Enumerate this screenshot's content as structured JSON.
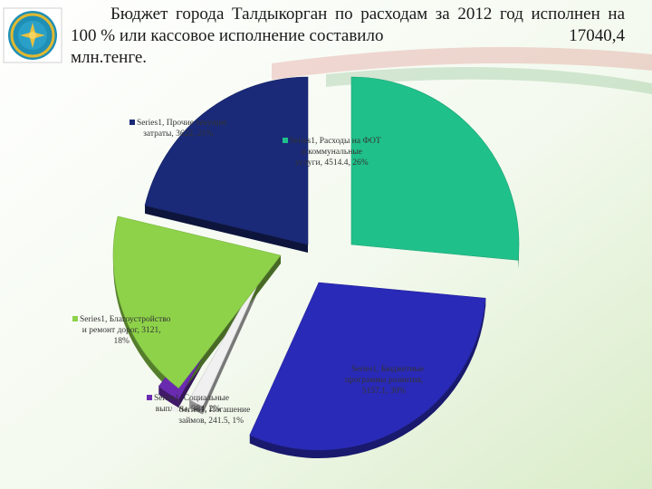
{
  "title": {
    "line1": "Бюджет города Талдыкорган по расходам за 2012 год исполнен на",
    "line2_left": "100 % или кассовое исполнение составило",
    "line2_right": "17040,4",
    "line3": "млн.тенге."
  },
  "colors": {
    "fot": "#20c08a",
    "dev": "#2a2ab8",
    "loans": "#f0f0f0",
    "social": "#6a2ab0",
    "roads": "#8ed24a",
    "other": "#1a2a78"
  },
  "chart_data": {
    "type": "pie",
    "title": "",
    "series_name": "Series1",
    "slices": [
      {
        "key": "fot",
        "name": "Расходы на ФОТ и коммунальные услуги",
        "value": 4514.4,
        "percent": 26
      },
      {
        "key": "dev",
        "name": "Бюджетные программы развития",
        "value": 5157.1,
        "percent": 30
      },
      {
        "key": "loans",
        "name": "Погашение займов",
        "value": 241.5,
        "percent": 1
      },
      {
        "key": "social",
        "name": "Социальные выплаты",
        "value": 384,
        "percent": 2
      },
      {
        "key": "roads",
        "name": "Благоустройство и ремонт дорог",
        "value": 3121,
        "percent": 18
      },
      {
        "key": "other",
        "name": "Прочие текущие затраты",
        "value": 3622,
        "percent": 21
      }
    ],
    "labels": [
      {
        "key": "other",
        "l1": "Series1, Прочие текущие",
        "l2": "затраты, 3622, 21%",
        "l3": ""
      },
      {
        "key": "fot",
        "l1": "Series1, Расходы на ФОТ",
        "l2": "и коммунальные",
        "l3": "услуги, 4514.4, 26%"
      },
      {
        "key": "roads",
        "l1": "Series1, Благоустройство",
        "l2": "и ремонт дорог, 3121,",
        "l3": "18%"
      },
      {
        "key": "dev",
        "l1": "Series1, Бюджетные",
        "l2": "программы развития,",
        "l3": "5157.1, 30%"
      },
      {
        "key": "social",
        "l1": "Series1, Социальные",
        "l2": "выплаты, 384, 2%",
        "l3": ""
      },
      {
        "key": "loans",
        "l1": "Series1, Погашение",
        "l2": "займов, 241.5, 1%",
        "l3": ""
      }
    ]
  }
}
